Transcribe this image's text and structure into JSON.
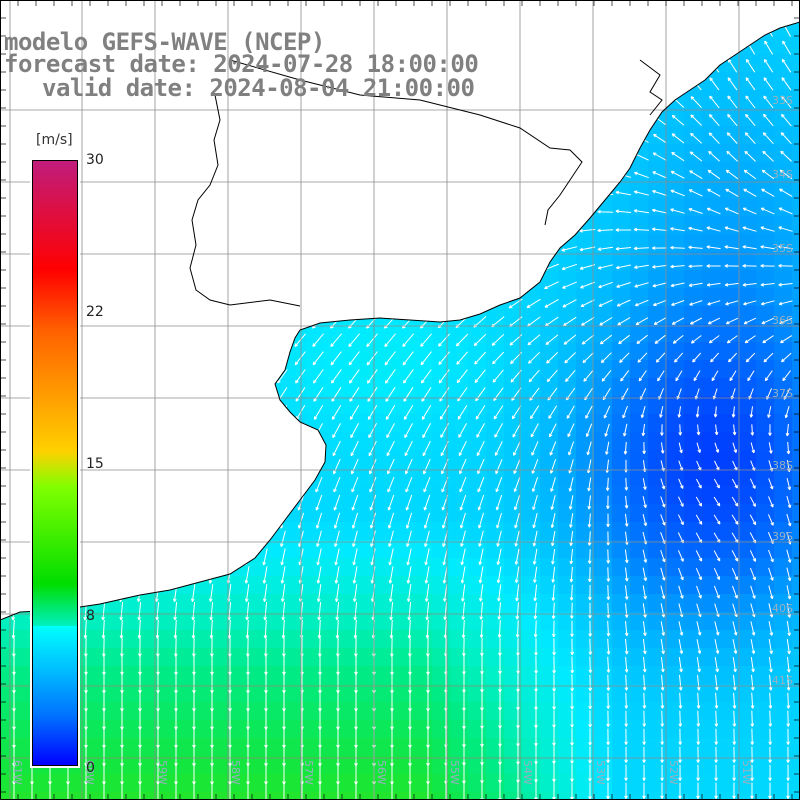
{
  "title": {
    "line1": "modelo GEFS-WAVE (NCEP)",
    "line2": "forecast date: 2024-07-28 18:00:00",
    "line3": "valid date: 2024-08-04 21:00:00"
  },
  "colorbar": {
    "unit": "[m/s]",
    "ticks": [
      {
        "label": "30",
        "value": 30
      },
      {
        "label": "22",
        "value": 22
      },
      {
        "label": "15",
        "value": 15
      },
      {
        "label": "8",
        "value": 8
      },
      {
        "label": "0",
        "value": 0
      }
    ]
  },
  "lat_labels": [
    "33S",
    "34S",
    "35S",
    "36S",
    "37S",
    "38S",
    "39S",
    "40S",
    "41S"
  ],
  "lon_labels": [
    "61W",
    "60W",
    "59W",
    "58W",
    "57W",
    "56W",
    "55W",
    "54W",
    "53W",
    "52W",
    "51W"
  ],
  "colors": {
    "deep_blue": "#0a1ee0",
    "mid_blue": "#0a6ef5",
    "cyan": "#00d8f0",
    "green": "#10e070",
    "land": "#ffffff",
    "grid": "#909090",
    "coast": "#000000",
    "arrow": "#ffffff"
  }
}
